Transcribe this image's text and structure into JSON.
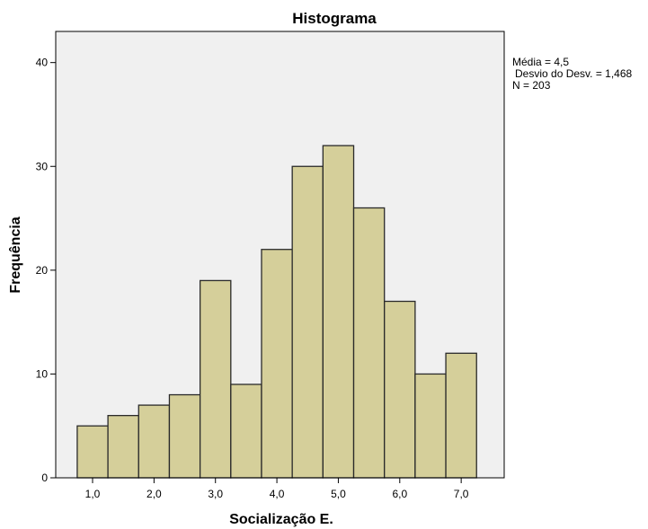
{
  "chart_data": {
    "type": "bar",
    "title": "Histograma",
    "xlabel": "Socialização E.",
    "ylabel": "Frequência",
    "xlim": [
      0.4,
      7.7
    ],
    "ylim": [
      0,
      43
    ],
    "x_ticks": [
      {
        "value": 1,
        "label": "1,0"
      },
      {
        "value": 2,
        "label": "2,0"
      },
      {
        "value": 3,
        "label": "3,0"
      },
      {
        "value": 4,
        "label": "4,0"
      },
      {
        "value": 5,
        "label": "5,0"
      },
      {
        "value": 6,
        "label": "6,0"
      },
      {
        "value": 7,
        "label": "7,0"
      }
    ],
    "y_ticks": [
      {
        "value": 0,
        "label": "0"
      },
      {
        "value": 10,
        "label": "10"
      },
      {
        "value": 20,
        "label": "20"
      },
      {
        "value": 30,
        "label": "30"
      },
      {
        "value": 40,
        "label": "40"
      }
    ],
    "bins": [
      {
        "start": 0.75,
        "end": 1.25,
        "count": 5
      },
      {
        "start": 1.25,
        "end": 1.75,
        "count": 6
      },
      {
        "start": 1.75,
        "end": 2.25,
        "count": 7
      },
      {
        "start": 2.25,
        "end": 2.75,
        "count": 8
      },
      {
        "start": 2.75,
        "end": 3.25,
        "count": 19
      },
      {
        "start": 3.25,
        "end": 3.75,
        "count": 9
      },
      {
        "start": 3.75,
        "end": 4.25,
        "count": 22
      },
      {
        "start": 4.25,
        "end": 4.75,
        "count": 30
      },
      {
        "start": 4.75,
        "end": 5.25,
        "count": 32
      },
      {
        "start": 5.25,
        "end": 5.75,
        "count": 26
      },
      {
        "start": 5.75,
        "end": 6.25,
        "count": 17
      },
      {
        "start": 6.25,
        "end": 6.75,
        "count": 10
      },
      {
        "start": 6.75,
        "end": 7.25,
        "count": 12
      }
    ],
    "stats": {
      "mean": "Média = 4,5",
      "std": "Desvio do Desv. = 1,468",
      "n": "N = 203"
    },
    "grid": false,
    "colors": {
      "bar_fill": "#d5cf9a",
      "bar_stroke": "#2a2a2a",
      "plot_background": "#f0f0f0",
      "axis": "#000000",
      "page_background": "#ffffff"
    }
  }
}
